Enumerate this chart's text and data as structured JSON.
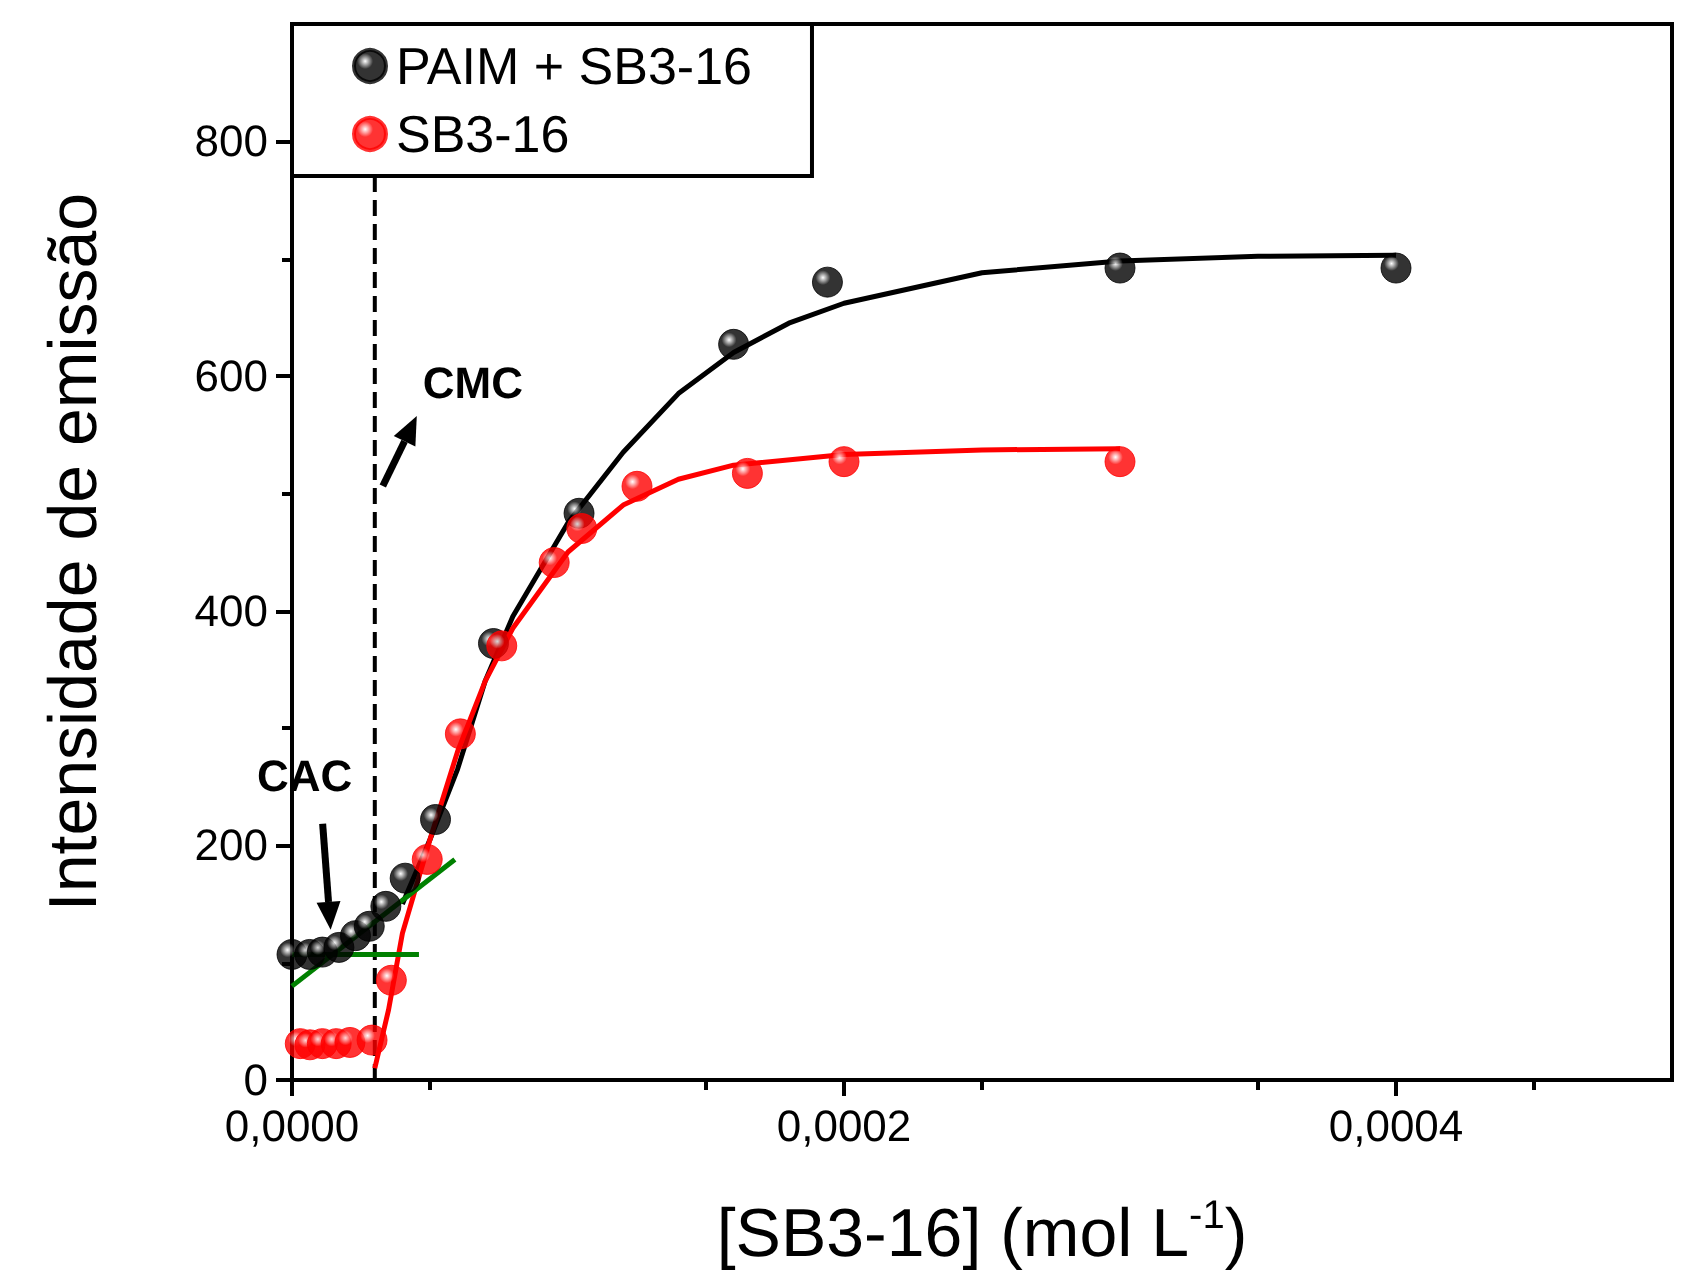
{
  "chart_data": {
    "type": "scatter",
    "xlabel": "[SB3-16] (mol L$^{-1}$)",
    "ylabel": "Intensidade de emissão",
    "xlim": [
      0,
      0.0005
    ],
    "xticks": [
      {
        "value": 0,
        "label": "0,0000"
      },
      {
        "value": 0.0002,
        "label": "0,0002"
      },
      {
        "value": 0.0004,
        "label": "0,0004"
      }
    ],
    "ylim": [
      0,
      900
    ],
    "yticks": [
      0,
      200,
      400,
      600,
      800
    ],
    "legend": "top left",
    "grid": false,
    "marker": "circle",
    "series": [
      {
        "name": "PAIM + SB3-16",
        "color": "#000000",
        "x": [
          0,
          6.4e-06,
          1.1e-05,
          1.7e-05,
          2.3e-05,
          2.8e-05,
          3.4e-05,
          4.1e-05,
          5.2e-05,
          7.3e-05,
          0.000104,
          0.00016,
          0.000194,
          0.0003,
          0.0004
        ],
        "values": [
          107,
          107,
          109,
          113,
          123,
          131,
          148,
          172,
          222,
          372,
          483,
          627,
          680,
          692,
          692
        ]
      },
      {
        "name": "SB3-16",
        "color": "#ff0000",
        "x": [
          3e-06,
          6.5e-06,
          1.1e-05,
          1.6e-05,
          2.1e-05,
          2.9e-05,
          3.6e-05,
          4.9e-05,
          6.1e-05,
          7.6e-05,
          9.5e-05,
          0.000105,
          0.000125,
          0.000165,
          0.0002,
          0.0003
        ],
        "values": [
          31,
          30,
          31,
          31,
          32,
          34,
          85,
          188,
          295,
          370,
          441,
          470,
          506,
          517,
          527,
          527
        ]
      },
      {
        "type": "line",
        "color": "#000000",
        "marker": "none",
        "x": [
          4e-05,
          5e-05,
          6e-05,
          7e-05,
          8e-05,
          0.0001,
          0.00012,
          0.00014,
          0.00016,
          0.00018,
          0.0002,
          0.00025,
          0.0003,
          0.00035,
          0.0004
        ],
        "values": [
          150,
          205,
          265,
          340,
          395,
          475,
          535,
          585,
          620,
          645,
          662,
          688,
          698,
          702,
          703
        ]
      },
      {
        "type": "line",
        "color": "#ff0000",
        "marker": "none",
        "x": [
          3e-05,
          3.5e-05,
          4e-05,
          5e-05,
          6e-05,
          7e-05,
          8e-05,
          0.0001,
          0.00012,
          0.00014,
          0.00016,
          0.0002,
          0.00025,
          0.0003
        ],
        "values": [
          10,
          60,
          125,
          205,
          280,
          340,
          385,
          450,
          490,
          512,
          524,
          533,
          537,
          538
        ]
      },
      {
        "type": "line",
        "color": "#008000",
        "marker": "none",
        "x": [
          0,
          4.6e-05
        ],
        "values": [
          107,
          107
        ]
      },
      {
        "type": "line",
        "color": "#008000",
        "marker": "none",
        "x": [
          0,
          5.9e-05
        ],
        "values": [
          80,
          188
        ]
      }
    ],
    "ref_lines": [
      {
        "axis": "x",
        "value": 3e-05,
        "color": "#000000",
        "line_style": "dashed",
        "label": "CMC"
      }
    ],
    "annotations": [
      {
        "text": "CAC",
        "x": 1.4e-05,
        "y": 128
      }
    ]
  }
}
